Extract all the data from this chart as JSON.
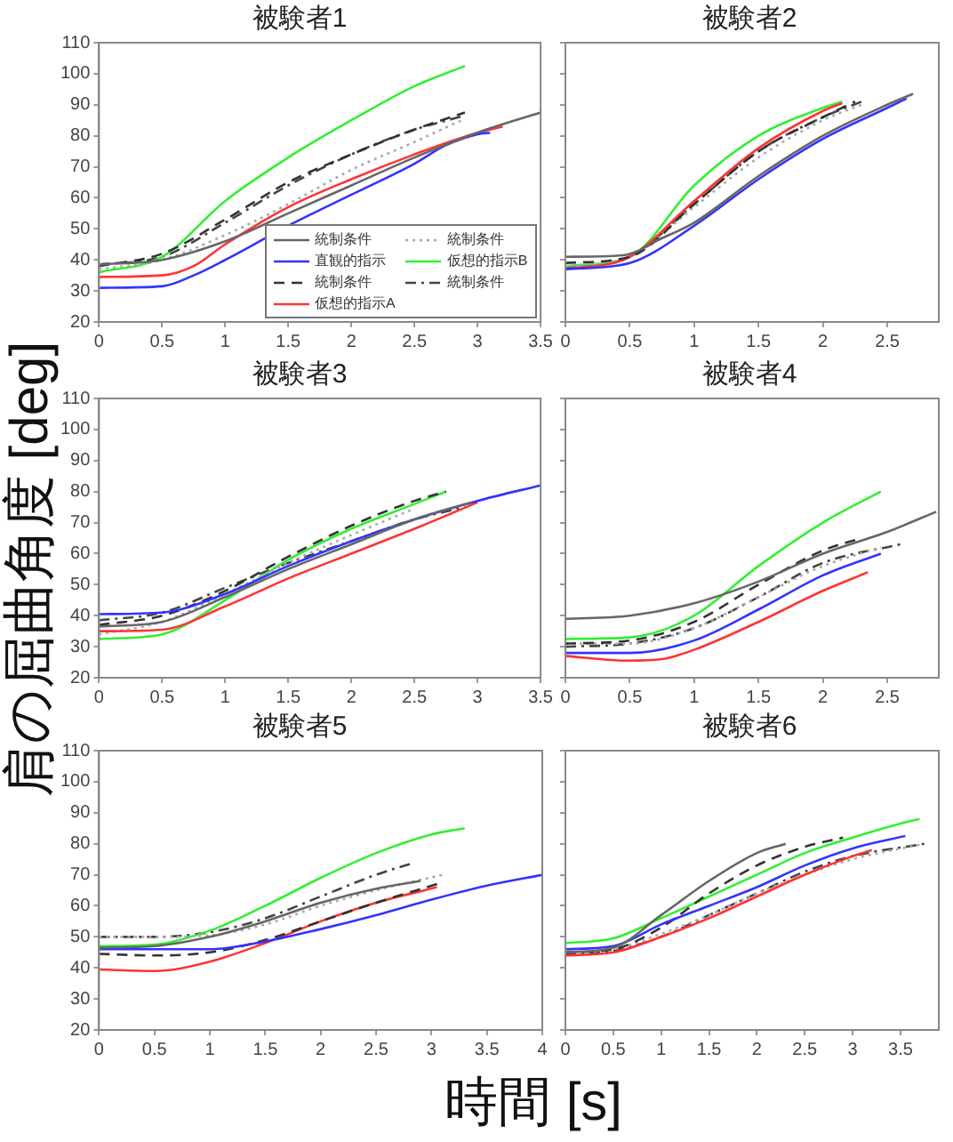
{
  "chart_data": [
    {
      "type": "line",
      "title": "被験者1",
      "ylabel": "肩の屈曲角度 [deg]",
      "xlabel": "時間 [s]",
      "legend": "bottom right",
      "marker": "none",
      "xlim": [
        0,
        3.5
      ],
      "ylim": [
        20,
        110
      ],
      "xticks": [
        0,
        0.5,
        1,
        1.5,
        2,
        2.5,
        3,
        3.5
      ],
      "yticks": [
        20,
        30,
        40,
        50,
        60,
        70,
        80,
        90,
        100,
        110
      ],
      "series": [
        {
          "name": "統制条件",
          "color": "#666666",
          "line_style": "solid",
          "x": [
            0,
            0.5,
            1,
            1.5,
            2,
            2.5,
            3,
            3.5
          ],
          "values": [
            38.5,
            40,
            46,
            55,
            64,
            73,
            81,
            87.5
          ]
        },
        {
          "name": "直観的指示",
          "color": "#3333ff",
          "line_style": "solid",
          "x": [
            0,
            0.5,
            0.75,
            1,
            1.5,
            2,
            2.5,
            2.75,
            3,
            3.1
          ],
          "values": [
            31,
            31.5,
            35,
            40,
            51,
            61,
            71,
            77,
            80.5,
            81
          ]
        },
        {
          "name": "統制条件",
          "color": "#333333",
          "line_style": "dashed",
          "x": [
            0,
            0.5,
            1,
            1.5,
            2,
            2.5,
            2.9
          ],
          "values": [
            38,
            42,
            53,
            65,
            74,
            82,
            87.5
          ]
        },
        {
          "name": "仮想的指示A",
          "color": "#ff3333",
          "line_style": "solid",
          "x": [
            0,
            0.5,
            0.75,
            1,
            1.5,
            2,
            2.5,
            3,
            3.2
          ],
          "values": [
            34.5,
            35,
            38,
            45,
            57,
            66,
            74,
            81,
            83
          ]
        },
        {
          "name": "統制条件",
          "color": "#aaaaaa",
          "line_style": "dotted",
          "x": [
            0,
            0.5,
            1,
            1.5,
            2,
            2.5,
            2.9
          ],
          "values": [
            37,
            40,
            48,
            58,
            69,
            78,
            85.5
          ]
        },
        {
          "name": "仮想的指示B",
          "color": "#33ee33",
          "line_style": "solid",
          "x": [
            0,
            0.5,
            1,
            1.5,
            2,
            2.5,
            2.9
          ],
          "values": [
            36,
            41,
            59,
            73,
            85,
            96,
            102.5
          ]
        },
        {
          "name": "統制条件",
          "color": "#444444",
          "line_style": "dashdot",
          "x": [
            0,
            0.5,
            1,
            1.5,
            2,
            2.5,
            2.9
          ],
          "values": [
            38.5,
            41,
            52,
            64,
            74,
            82,
            86.5
          ]
        }
      ]
    },
    {
      "type": "line",
      "title": "被験者2",
      "marker": "none",
      "tick_labels": "x",
      "xlim": [
        0,
        2.9
      ],
      "ylim": [
        20,
        110
      ],
      "xticks": [
        0,
        0.5,
        1,
        1.5,
        2,
        2.5
      ],
      "yticks": [
        20,
        30,
        40,
        50,
        60,
        70,
        80,
        90,
        100,
        110
      ],
      "series": [
        {
          "color": "#666666",
          "line_style": "solid",
          "x": [
            0,
            0.45,
            0.75,
            1,
            1.5,
            2,
            2.5,
            2.7
          ],
          "values": [
            41,
            41.5,
            47,
            52,
            67,
            80,
            90,
            93.5
          ]
        },
        {
          "color": "#3333ff",
          "line_style": "solid",
          "x": [
            0,
            0.5,
            1,
            1.5,
            2,
            2.5,
            2.65
          ],
          "values": [
            37,
            39,
            51,
            66,
            79,
            89,
            92
          ]
        },
        {
          "color": "#333333",
          "line_style": "dashed",
          "x": [
            0,
            0.5,
            1,
            1.5,
            2,
            2.25
          ],
          "values": [
            39,
            41,
            58,
            75,
            86,
            91
          ]
        },
        {
          "color": "#ff3333",
          "line_style": "solid",
          "x": [
            0,
            0.5,
            1,
            1.5,
            2,
            2.15
          ],
          "values": [
            37,
            41,
            59,
            76,
            88,
            90.5
          ]
        },
        {
          "color": "#aaaaaa",
          "line_style": "dotted",
          "x": [
            0,
            0.5,
            1,
            1.5,
            2,
            2.3
          ],
          "values": [
            38,
            41,
            57,
            73,
            85,
            90
          ]
        },
        {
          "color": "#33ee33",
          "line_style": "solid",
          "x": [
            0,
            0.5,
            1,
            1.5,
            2,
            2.15
          ],
          "values": [
            38,
            41,
            64,
            80,
            89,
            91
          ]
        },
        {
          "color": "#444444",
          "line_style": "dashdot",
          "x": [
            0,
            0.5,
            1,
            1.5,
            2,
            2.3
          ],
          "values": [
            37.5,
            41,
            58,
            75,
            86,
            91
          ]
        }
      ]
    },
    {
      "type": "line",
      "title": "被験者3",
      "marker": "none",
      "xlim": [
        0,
        3.5
      ],
      "ylim": [
        20,
        110
      ],
      "xticks": [
        0,
        0.5,
        1,
        1.5,
        2,
        2.5,
        3,
        3.5
      ],
      "yticks": [
        20,
        30,
        40,
        50,
        60,
        70,
        80,
        90,
        100,
        110
      ],
      "series": [
        {
          "color": "#666666",
          "line_style": "solid",
          "x": [
            0,
            0.5,
            1,
            1.5,
            2,
            2.5,
            2.95
          ],
          "values": [
            36.5,
            38,
            46,
            55,
            63,
            71,
            76.5
          ]
        },
        {
          "color": "#3333ff",
          "line_style": "solid",
          "x": [
            0,
            0.5,
            1,
            1.5,
            2,
            2.5,
            3,
            3.5
          ],
          "values": [
            40.5,
            41,
            47,
            56,
            64,
            71,
            77,
            82
          ]
        },
        {
          "color": "#333333",
          "line_style": "dashed",
          "x": [
            0,
            0.5,
            1,
            1.5,
            2,
            2.5,
            2.75
          ],
          "values": [
            37,
            40,
            48,
            59,
            69,
            77,
            80
          ]
        },
        {
          "color": "#ff3333",
          "line_style": "solid",
          "x": [
            0,
            0.5,
            1,
            1.5,
            2,
            2.5,
            3
          ],
          "values": [
            35,
            35.5,
            43,
            52,
            60,
            68,
            76.5
          ]
        },
        {
          "color": "#aaaaaa",
          "line_style": "dotted",
          "x": [
            0,
            0.5,
            1,
            1.5,
            2,
            2.5
          ],
          "values": [
            34,
            38,
            47,
            57,
            66,
            74.5
          ]
        },
        {
          "color": "#33ee33",
          "line_style": "solid",
          "x": [
            0,
            0.5,
            1,
            1.5,
            2,
            2.5,
            2.75
          ],
          "values": [
            32.5,
            34,
            45,
            58,
            68,
            76,
            80
          ]
        },
        {
          "color": "#444444",
          "line_style": "dashdot",
          "x": [
            0,
            0.5,
            1,
            1.5,
            2,
            2.5,
            2.9
          ],
          "values": [
            38.5,
            41,
            49,
            57,
            64,
            71,
            75
          ]
        }
      ]
    },
    {
      "type": "line",
      "title": "被験者4",
      "marker": "none",
      "tick_labels": "x",
      "xlim": [
        0,
        2.9
      ],
      "ylim": [
        20,
        110
      ],
      "xticks": [
        0,
        0.5,
        1,
        1.5,
        2,
        2.5
      ],
      "yticks": [
        20,
        30,
        40,
        50,
        60,
        70,
        80,
        90,
        100,
        110
      ],
      "series": [
        {
          "color": "#666666",
          "line_style": "solid",
          "x": [
            0,
            0.5,
            1,
            1.5,
            2,
            2.5,
            2.88
          ],
          "values": [
            39,
            40,
            44,
            51,
            60,
            67,
            73.5
          ]
        },
        {
          "color": "#3333ff",
          "line_style": "solid",
          "x": [
            0,
            0.5,
            1,
            1.5,
            2,
            2.45
          ],
          "values": [
            28,
            28,
            32,
            42,
            53,
            60
          ]
        },
        {
          "color": "#333333",
          "line_style": "dashed",
          "x": [
            0,
            0.5,
            1,
            1.5,
            2,
            2.3
          ],
          "values": [
            31,
            32,
            38,
            50,
            61,
            65
          ]
        },
        {
          "color": "#ff3333",
          "line_style": "solid",
          "x": [
            0,
            0.5,
            0.75,
            1,
            1.5,
            2,
            2.35
          ],
          "values": [
            27,
            25.5,
            26,
            29,
            38,
            48,
            54
          ]
        },
        {
          "color": "#aaaaaa",
          "line_style": "dotted",
          "x": [
            0,
            0.5,
            1,
            1.5,
            2,
            2.45
          ],
          "values": [
            31,
            31,
            36,
            46,
            56,
            62
          ]
        },
        {
          "color": "#33ee33",
          "line_style": "solid",
          "x": [
            0,
            0.5,
            1,
            1.5,
            2,
            2.45
          ],
          "values": [
            32.5,
            33,
            40,
            56,
            70,
            80
          ]
        },
        {
          "color": "#444444",
          "line_style": "dashdot",
          "x": [
            0,
            0.5,
            1,
            1.5,
            2,
            2.6
          ],
          "values": [
            30,
            31,
            36,
            46,
            57,
            63
          ]
        }
      ]
    },
    {
      "type": "line",
      "title": "被験者5",
      "marker": "none",
      "xlim": [
        0,
        4
      ],
      "ylim": [
        20,
        110
      ],
      "xticks": [
        0,
        0.5,
        1,
        1.5,
        2,
        2.5,
        3,
        3.5,
        4
      ],
      "yticks": [
        20,
        30,
        40,
        50,
        60,
        70,
        80,
        90,
        100,
        110
      ],
      "series": [
        {
          "color": "#666666",
          "line_style": "solid",
          "x": [
            0,
            0.5,
            1,
            1.5,
            2,
            2.5,
            2.9
          ],
          "values": [
            46.5,
            47,
            50,
            55,
            61,
            65.5,
            68
          ]
        },
        {
          "color": "#3333ff",
          "line_style": "solid",
          "x": [
            0,
            0.5,
            1,
            1.5,
            2,
            2.5,
            3,
            3.5,
            4
          ],
          "values": [
            46,
            46,
            46,
            48.5,
            52.5,
            57,
            62,
            66.5,
            70
          ]
        },
        {
          "color": "#333333",
          "line_style": "dashed",
          "x": [
            0,
            0.5,
            1,
            1.5,
            2,
            2.5,
            3.05
          ],
          "values": [
            44.5,
            44,
            45,
            49,
            55,
            61,
            67
          ]
        },
        {
          "color": "#ff3333",
          "line_style": "solid",
          "x": [
            0,
            0.5,
            1,
            1.5,
            2,
            2.5,
            3.05
          ],
          "values": [
            39.5,
            39,
            42,
            48,
            55,
            61,
            66
          ]
        },
        {
          "color": "#aaaaaa",
          "line_style": "dotted",
          "x": [
            0,
            0.5,
            1,
            1.5,
            2,
            2.5,
            3.1
          ],
          "values": [
            50,
            50,
            50.5,
            54,
            60,
            65,
            70
          ]
        },
        {
          "color": "#33ee33",
          "line_style": "solid",
          "x": [
            0,
            0.5,
            1,
            1.5,
            2,
            2.5,
            3,
            3.3
          ],
          "values": [
            47,
            47.5,
            52,
            60,
            69,
            77,
            83,
            85
          ]
        },
        {
          "color": "#444444",
          "line_style": "dashdot",
          "x": [
            0,
            0.5,
            1,
            1.5,
            2,
            2.5,
            2.85
          ],
          "values": [
            50,
            50,
            51.5,
            56,
            63,
            70,
            74
          ]
        }
      ]
    },
    {
      "type": "line",
      "title": "被験者6",
      "marker": "none",
      "tick_labels": "x",
      "xlim": [
        0,
        3.9
      ],
      "ylim": [
        20,
        110
      ],
      "xticks": [
        0,
        0.5,
        1,
        1.5,
        2,
        2.5,
        3,
        3.5
      ],
      "yticks": [
        20,
        30,
        40,
        50,
        60,
        70,
        80,
        90,
        100,
        110
      ],
      "series": [
        {
          "color": "#666666",
          "line_style": "solid",
          "x": [
            0,
            0.5,
            1,
            1.5,
            2,
            2.3
          ],
          "values": [
            45,
            46.5,
            57,
            68,
            77,
            80
          ]
        },
        {
          "color": "#3333ff",
          "line_style": "solid",
          "x": [
            0,
            0.5,
            1,
            1.5,
            2,
            2.5,
            3,
            3.55
          ],
          "values": [
            46,
            47,
            54,
            60,
            66,
            73,
            78.5,
            82.5
          ]
        },
        {
          "color": "#333333",
          "line_style": "dashed",
          "x": [
            0,
            0.5,
            1,
            1.5,
            2,
            2.5,
            2.9
          ],
          "values": [
            45,
            46,
            53,
            64,
            73,
            79,
            82
          ]
        },
        {
          "color": "#ff3333",
          "line_style": "solid",
          "x": [
            0,
            0.5,
            1,
            1.5,
            2,
            2.5,
            3,
            3.2
          ],
          "values": [
            44,
            45,
            50,
            56,
            63,
            70,
            76,
            78
          ]
        },
        {
          "color": "#aaaaaa",
          "line_style": "dotted",
          "x": [
            0,
            0.5,
            1,
            1.5,
            2,
            2.5,
            3,
            3.75
          ],
          "values": [
            45,
            46,
            51,
            57,
            64,
            70,
            75,
            80
          ]
        },
        {
          "color": "#33ee33",
          "line_style": "solid",
          "x": [
            0,
            0.5,
            1,
            1.5,
            2,
            2.5,
            3,
            3.5,
            3.7
          ],
          "values": [
            48,
            49.5,
            56,
            63,
            70,
            77,
            82,
            86.5,
            88
          ]
        },
        {
          "color": "#444444",
          "line_style": "dashdot",
          "x": [
            0,
            0.5,
            1,
            1.5,
            2,
            2.5,
            3,
            3.75
          ],
          "values": [
            44.5,
            45.5,
            50,
            57,
            64,
            71,
            76,
            80
          ]
        }
      ]
    }
  ]
}
